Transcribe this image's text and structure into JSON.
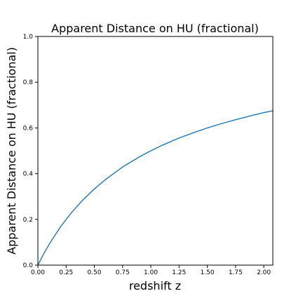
{
  "chart_data": {
    "type": "line",
    "title": "Apparent Distance on HU (fractional)",
    "xlabel": "redshift z",
    "ylabel": "Apparent Distance on HU (fractional)",
    "xlim": [
      0,
      2.08
    ],
    "ylim": [
      0,
      1.0
    ],
    "xticks": [
      0.0,
      0.25,
      0.5,
      0.75,
      1.0,
      1.25,
      1.5,
      1.75,
      2.0
    ],
    "xtick_labels": [
      "0.00",
      "0.25",
      "0.50",
      "0.75",
      "1.00",
      "1.25",
      "1.50",
      "1.75",
      "2.00"
    ],
    "yticks": [
      0.0,
      0.2,
      0.4,
      0.6,
      0.8,
      1.0
    ],
    "ytick_labels": [
      "0.0",
      "0.2",
      "0.4",
      "0.6",
      "0.8",
      "1.0"
    ],
    "grid": false,
    "series": [
      {
        "color": "#1f77b4",
        "x": [
          0.0,
          0.05,
          0.1,
          0.15,
          0.2,
          0.25,
          0.3,
          0.4,
          0.5,
          0.6,
          0.75,
          0.9,
          1.0,
          1.1,
          1.25,
          1.4,
          1.5,
          1.6,
          1.75,
          1.9,
          2.0,
          2.08
        ],
        "y": [
          0.0,
          0.048,
          0.091,
          0.13,
          0.167,
          0.2,
          0.231,
          0.286,
          0.333,
          0.375,
          0.429,
          0.474,
          0.5,
          0.524,
          0.556,
          0.583,
          0.6,
          0.615,
          0.636,
          0.655,
          0.667,
          0.675
        ]
      }
    ]
  }
}
